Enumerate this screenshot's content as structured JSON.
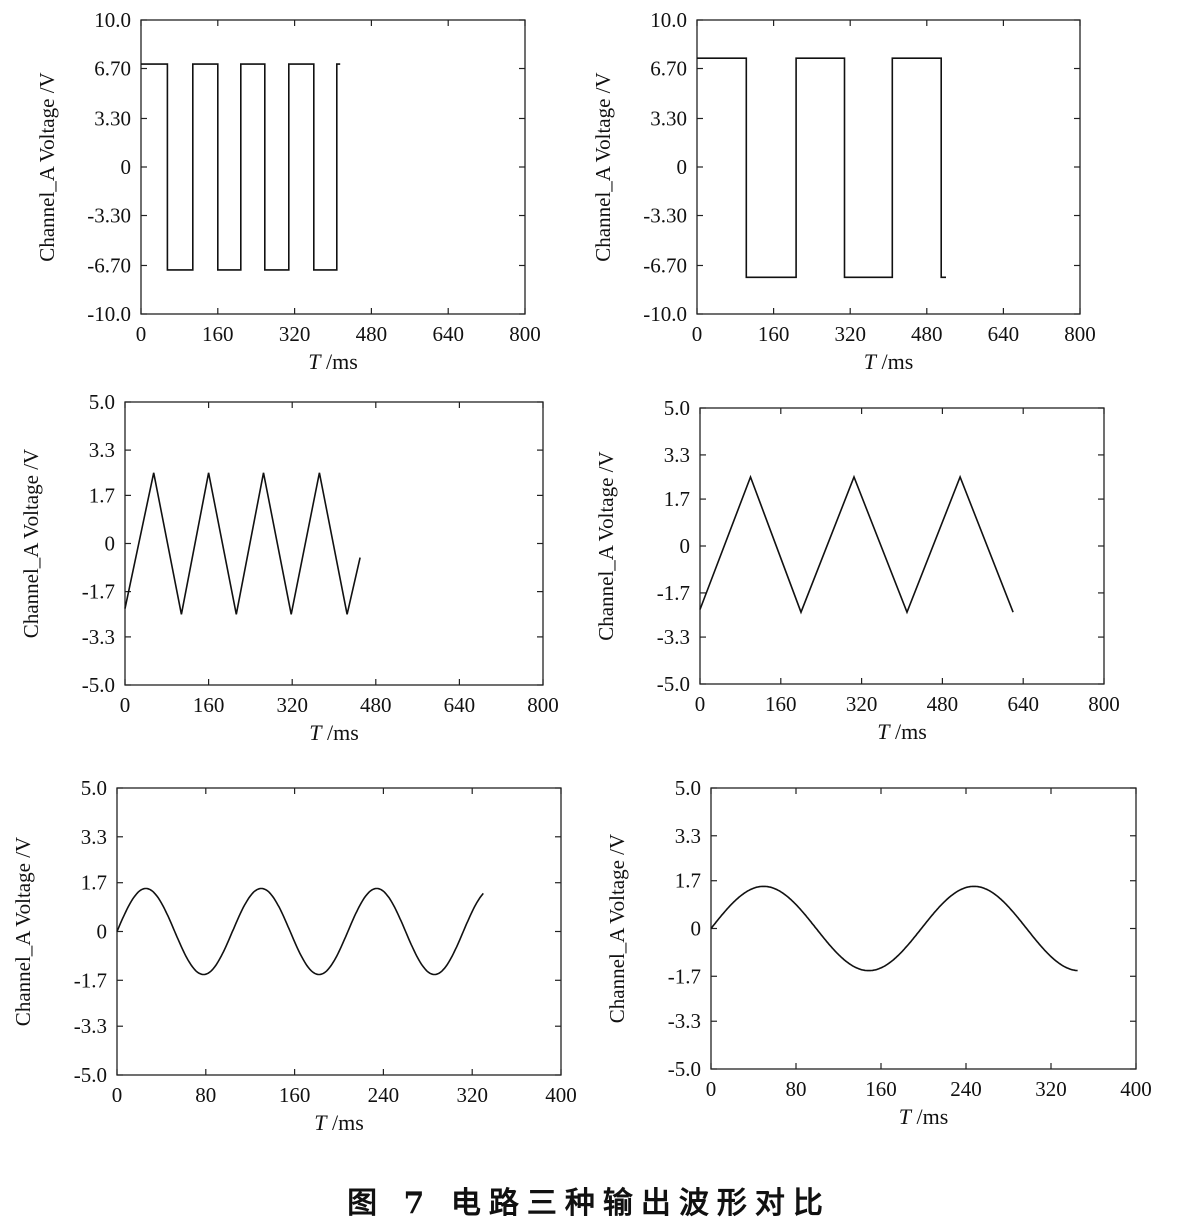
{
  "caption": "图 7   电路三种输出波形对比",
  "chart_data": [
    {
      "type": "line",
      "ylabel": "Channel_A Voltage /V",
      "xlabel_var": "T",
      "xlabel_unit": " /ms",
      "xlim": [
        0,
        800
      ],
      "ylim": [
        -10,
        10
      ],
      "xticks": [
        "0",
        "160",
        "320",
        "480",
        "640",
        "800"
      ],
      "yticks": [
        "10.0",
        "6.70",
        "3.30",
        "0",
        "-3.30",
        "-6.70",
        "-10.0"
      ],
      "ytick_values": [
        10,
        6.7,
        3.3,
        0,
        -3.3,
        -6.7,
        -10
      ],
      "series": [
        {
          "values": [
            [
              0,
              7
            ],
            [
              55,
              7
            ],
            [
              55,
              -7
            ],
            [
              108,
              -7
            ],
            [
              108,
              7
            ],
            [
              160,
              7
            ],
            [
              160,
              -7
            ],
            [
              208,
              -7
            ],
            [
              208,
              7
            ],
            [
              258,
              7
            ],
            [
              258,
              -7
            ],
            [
              308,
              -7
            ],
            [
              308,
              7
            ],
            [
              360,
              7
            ],
            [
              360,
              -7
            ],
            [
              408,
              -7
            ],
            [
              408,
              7
            ],
            [
              415,
              7
            ]
          ]
        }
      ]
    },
    {
      "type": "line",
      "ylabel": "Channel_A Voltage /V",
      "xlabel_var": "T",
      "xlabel_unit": " /ms",
      "xlim": [
        0,
        800
      ],
      "ylim": [
        -10,
        10
      ],
      "xticks": [
        "0",
        "160",
        "320",
        "480",
        "640",
        "800"
      ],
      "yticks": [
        "10.0",
        "6.70",
        "3.30",
        "0",
        "-3.30",
        "-6.70",
        "-10.0"
      ],
      "ytick_values": [
        10,
        6.7,
        3.3,
        0,
        -3.3,
        -6.7,
        -10
      ],
      "series": [
        {
          "values": [
            [
              0,
              7.4
            ],
            [
              103,
              7.4
            ],
            [
              103,
              -7.5
            ],
            [
              207,
              -7.5
            ],
            [
              207,
              7.4
            ],
            [
              308,
              7.4
            ],
            [
              308,
              -7.5
            ],
            [
              408,
              -7.5
            ],
            [
              408,
              7.4
            ],
            [
              510,
              7.4
            ],
            [
              510,
              -7.5
            ],
            [
              520,
              -7.5
            ]
          ]
        }
      ]
    },
    {
      "type": "line",
      "ylabel": "Channel_A Voltage /V",
      "xlabel_var": "T",
      "xlabel_unit": " /ms",
      "xlim": [
        0,
        800
      ],
      "ylim": [
        -5,
        5
      ],
      "xticks": [
        "0",
        "160",
        "320",
        "480",
        "640",
        "800"
      ],
      "yticks": [
        "5.0",
        "3.3",
        "1.7",
        "0",
        "-1.7",
        "-3.3",
        "-5.0"
      ],
      "ytick_values": [
        5,
        3.3,
        1.7,
        0,
        -1.7,
        -3.3,
        -5
      ],
      "series": [
        {
          "values": [
            [
              0,
              -2.3
            ],
            [
              55,
              2.5
            ],
            [
              108,
              -2.5
            ],
            [
              160,
              2.5
            ],
            [
              213,
              -2.5
            ],
            [
              265,
              2.5
            ],
            [
              318,
              -2.5
            ],
            [
              372,
              2.5
            ],
            [
              425,
              -2.5
            ],
            [
              450,
              -0.5
            ]
          ]
        }
      ]
    },
    {
      "type": "line",
      "ylabel": "Channel_A Voltage /V",
      "xlabel_var": "T",
      "xlabel_unit": " /ms",
      "xlim": [
        0,
        800
      ],
      "ylim": [
        -5,
        5
      ],
      "xticks": [
        "0",
        "160",
        "320",
        "480",
        "640",
        "800"
      ],
      "yticks": [
        "5.0",
        "3.3",
        "1.7",
        "0",
        "-1.7",
        "-3.3",
        "-5.0"
      ],
      "ytick_values": [
        5,
        3.3,
        1.7,
        0,
        -1.7,
        -3.3,
        -5
      ],
      "series": [
        {
          "values": [
            [
              0,
              -2.3
            ],
            [
              100,
              2.5
            ],
            [
              200,
              -2.4
            ],
            [
              305,
              2.5
            ],
            [
              410,
              -2.4
            ],
            [
              515,
              2.5
            ],
            [
              620,
              -2.4
            ]
          ]
        }
      ]
    },
    {
      "type": "line",
      "ylabel": "Channel_A Voltage /V",
      "xlabel_var": "T",
      "xlabel_unit": " /ms",
      "xlim": [
        0,
        400
      ],
      "ylim": [
        -5,
        5
      ],
      "xticks": [
        "0",
        "80",
        "160",
        "240",
        "320",
        "400"
      ],
      "yticks": [
        "5.0",
        "3.3",
        "1.7",
        "0",
        "-1.7",
        "-3.3",
        "-5.0"
      ],
      "ytick_values": [
        5,
        3.3,
        1.7,
        0,
        -1.7,
        -3.3,
        -5
      ],
      "wave": {
        "amplitude": 1.5,
        "period": 104,
        "x_end": 330
      }
    },
    {
      "type": "line",
      "ylabel": "Channel_A Voltage /V",
      "xlabel_var": "T",
      "xlabel_unit": " /ms",
      "xlim": [
        0,
        400
      ],
      "ylim": [
        -5,
        5
      ],
      "xticks": [
        "0",
        "80",
        "160",
        "240",
        "320",
        "400"
      ],
      "yticks": [
        "5.0",
        "3.3",
        "1.7",
        "0",
        "-1.7",
        "-3.3",
        "-5.0"
      ],
      "ytick_values": [
        5,
        3.3,
        1.7,
        0,
        -1.7,
        -3.3,
        -5
      ],
      "wave": {
        "amplitude": 1.5,
        "period": 198,
        "x_end": 345
      }
    }
  ]
}
